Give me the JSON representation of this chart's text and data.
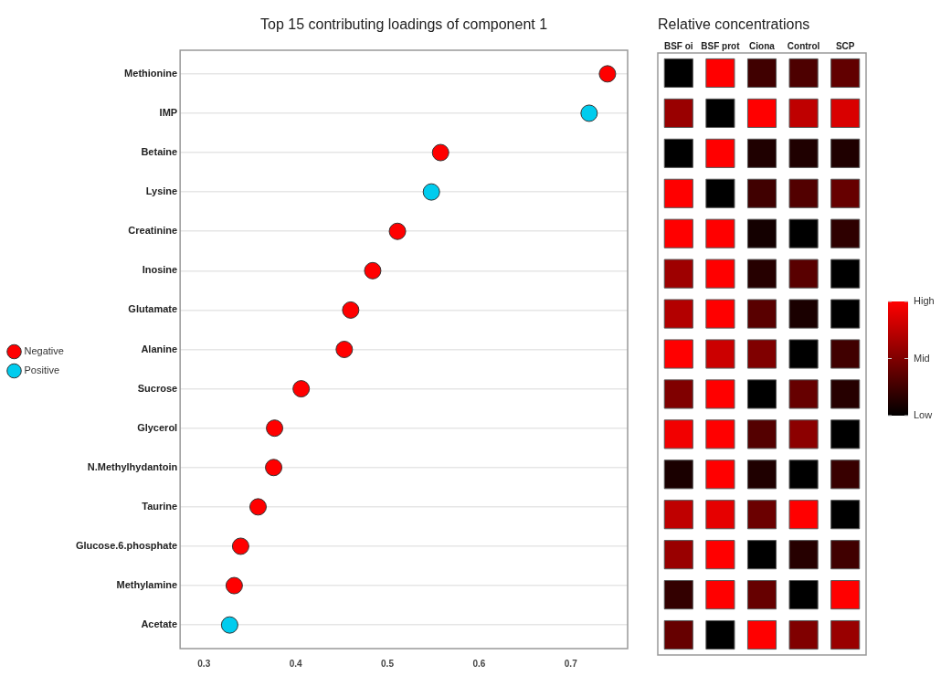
{
  "chart_data": [
    {
      "type": "scatter",
      "title": "Top 15 contributing loadings of component 1",
      "orientation": "horizontal",
      "categories": [
        "Methionine",
        "IMP",
        "Betaine",
        "Lysine",
        "Creatinine",
        "Inosine",
        "Glutamate",
        "Alanine",
        "Sucrose",
        "Glycerol",
        "N.Methylhydantoin",
        "Taurine",
        "Glucose.6.phosphate",
        "Methylamine",
        "Acetate"
      ],
      "series": [
        {
          "name": "Negative",
          "color": "#ff0000",
          "values": [
            0.74,
            null,
            0.558,
            null,
            0.511,
            0.484,
            0.46,
            0.453,
            0.406,
            0.377,
            0.376,
            0.359,
            0.34,
            0.333,
            null
          ]
        },
        {
          "name": "Positive",
          "color": "#00ccee",
          "values": [
            null,
            0.72,
            null,
            0.548,
            null,
            null,
            null,
            null,
            null,
            null,
            null,
            null,
            null,
            null,
            0.328
          ]
        }
      ],
      "xlim": [
        0.274,
        0.762
      ],
      "xticks": [
        0.3,
        0.4,
        0.5,
        0.6,
        0.7
      ],
      "grid": "y",
      "legend": "left",
      "marker": "circle"
    },
    {
      "type": "heatmap",
      "title": "Relative concentrations",
      "categories": [
        "BSF oi",
        "BSF prot",
        "Ciona",
        "Control",
        "SCP"
      ],
      "y_categories": [
        null,
        null,
        null,
        null,
        null,
        null,
        null,
        null,
        null,
        null,
        null,
        null,
        null,
        null,
        null
      ],
      "cells": [
        [
          0,
          1,
          0.25,
          0.3,
          0.38
        ],
        [
          0.6,
          0,
          1,
          0.75,
          0.85
        ],
        [
          0,
          1,
          0.12,
          0.12,
          0.12
        ],
        [
          1,
          0,
          0.25,
          0.32,
          0.4
        ],
        [
          1,
          1,
          0.08,
          0,
          0.18
        ],
        [
          0.62,
          1,
          0.15,
          0.35,
          0
        ],
        [
          0.7,
          1,
          0.35,
          0.1,
          0
        ],
        [
          1,
          0.8,
          0.5,
          0,
          0.25
        ],
        [
          0.5,
          1,
          0,
          0.4,
          0.15
        ],
        [
          0.95,
          1,
          0.33,
          0.55,
          0
        ],
        [
          0.1,
          1,
          0.12,
          0,
          0.22
        ],
        [
          0.75,
          0.9,
          0.42,
          1,
          0
        ],
        [
          0.6,
          1,
          0,
          0.15,
          0.25
        ],
        [
          0.2,
          1,
          0.4,
          0,
          1
        ],
        [
          0.4,
          0,
          1,
          0.5,
          0.6
        ]
      ],
      "clim": [
        0,
        1
      ],
      "cticks": [
        {
          "value": 0,
          "label": "Low"
        },
        {
          "value": 0.5,
          "label": "Mid"
        },
        {
          "value": 1,
          "label": "High"
        }
      ],
      "tick_labels": "x"
    }
  ]
}
